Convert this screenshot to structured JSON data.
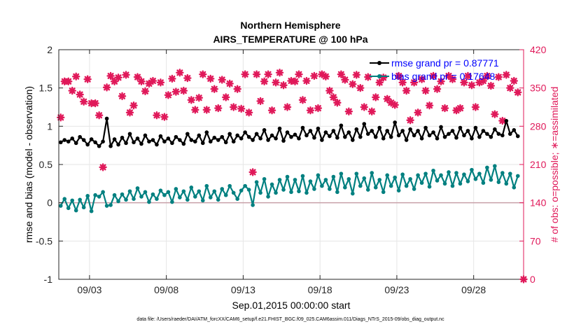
{
  "chart_data": {
    "type": "line",
    "title": "Northern Hemisphere",
    "subtitle": "AIRS_TEMPERATURE @ 100 hPa",
    "xlabel": "Sep.01,2015 00:00:00 start",
    "ylabel": "rmse and bias (model - observation)",
    "y2label": "# of obs: o=possible; ∗=assimilated",
    "footnote": "data file: /Users/raeder/DAI/ATM_forcXX/CAM6_setup/f.e21.FHIST_BGC.f09_025.CAM6assim.011/Diags_NTrS_2015-09/obs_diag_output.nc",
    "xlim": [
      1.0,
      31.25
    ],
    "ylim": [
      -1,
      2
    ],
    "y2lim": [
      0,
      420
    ],
    "x_ticks": [
      3,
      8,
      13,
      18,
      23,
      28
    ],
    "x_tick_labels": [
      "09/03",
      "09/08",
      "09/13",
      "09/18",
      "09/23",
      "09/28"
    ],
    "y_ticks": [
      -1,
      -0.5,
      0,
      0.5,
      1,
      1.5,
      2
    ],
    "y_tick_labels": [
      "-1",
      "-0.5",
      "0",
      "0.5",
      "1",
      "1.5",
      "2"
    ],
    "y2_ticks": [
      0,
      70,
      140,
      210,
      280,
      350,
      420
    ],
    "y2_tick_labels": [
      "0",
      "70",
      "140",
      "210",
      "280",
      "350",
      "420"
    ],
    "grid": true,
    "legend_position": "top-right",
    "colors": {
      "rmse": "#000000",
      "bias": "#008080",
      "obs": "#e0195a",
      "axis2": "#e0195a",
      "zero_line": "#c8a0a8"
    },
    "series": [
      {
        "name": "rmse grand pr = 0.87771",
        "color": "#000000",
        "x": [
          1.125,
          1.375,
          1.625,
          1.875,
          2.125,
          2.375,
          2.625,
          2.875,
          3.125,
          3.375,
          3.625,
          3.875,
          4.125,
          4.375,
          4.625,
          4.875,
          5.125,
          5.375,
          5.625,
          5.875,
          6.125,
          6.375,
          6.625,
          6.875,
          7.125,
          7.375,
          7.625,
          7.875,
          8.125,
          8.375,
          8.625,
          8.875,
          9.125,
          9.375,
          9.625,
          9.875,
          10.125,
          10.375,
          10.625,
          10.875,
          11.125,
          11.375,
          11.625,
          11.875,
          12.125,
          12.375,
          12.625,
          12.875,
          13.125,
          13.375,
          13.625,
          13.875,
          14.125,
          14.375,
          14.625,
          14.875,
          15.125,
          15.375,
          15.625,
          15.875,
          16.125,
          16.375,
          16.625,
          16.875,
          17.125,
          17.375,
          17.625,
          17.875,
          18.125,
          18.375,
          18.625,
          18.875,
          19.125,
          19.375,
          19.625,
          19.875,
          20.125,
          20.375,
          20.625,
          20.875,
          21.125,
          21.375,
          21.625,
          21.875,
          22.125,
          22.375,
          22.625,
          22.875,
          23.125,
          23.375,
          23.625,
          23.875,
          24.125,
          24.375,
          24.625,
          24.875,
          25.125,
          25.375,
          25.625,
          25.875,
          26.125,
          26.375,
          26.625,
          26.875,
          27.125,
          27.375,
          27.625,
          27.875,
          28.125,
          28.375,
          28.625,
          28.875,
          29.125,
          29.375,
          29.625,
          29.875,
          30.125,
          30.375,
          30.625,
          30.875
        ],
        "values": [
          0.79,
          0.82,
          0.8,
          0.84,
          0.78,
          0.86,
          0.82,
          0.76,
          0.83,
          0.79,
          0.74,
          0.8,
          1.1,
          0.74,
          0.83,
          0.76,
          0.85,
          0.78,
          0.9,
          0.79,
          0.84,
          0.77,
          0.88,
          0.8,
          0.82,
          0.76,
          0.87,
          0.8,
          0.84,
          0.78,
          0.86,
          0.82,
          0.77,
          0.9,
          0.82,
          0.8,
          0.88,
          0.78,
          0.92,
          0.8,
          0.85,
          0.82,
          0.86,
          0.79,
          0.9,
          0.8,
          0.88,
          0.84,
          0.92,
          0.86,
          0.82,
          0.9,
          0.84,
          0.95,
          0.82,
          0.88,
          0.84,
          0.97,
          0.81,
          0.92,
          0.86,
          0.89,
          0.84,
          0.98,
          0.88,
          0.94,
          0.85,
          0.97,
          0.82,
          0.92,
          0.87,
          0.94,
          0.85,
          1.01,
          0.86,
          0.92,
          0.82,
          0.96,
          0.86,
          1.03,
          0.9,
          0.94,
          0.86,
          0.98,
          0.84,
          0.94,
          0.86,
          1.05,
          0.88,
          0.94,
          0.82,
          0.96,
          0.88,
          0.94,
          0.84,
          0.98,
          0.88,
          0.92,
          0.84,
          0.99,
          0.86,
          0.9,
          0.94,
          0.85,
          0.98,
          0.88,
          0.94,
          0.84,
          0.98,
          0.86,
          0.94,
          0.9,
          0.86,
          0.96,
          0.9,
          0.88,
          1.07,
          0.9,
          0.95,
          0.87
        ]
      },
      {
        "name": "bias grand pr = 0.17648",
        "color": "#008080",
        "x": [
          1.125,
          1.375,
          1.625,
          1.875,
          2.125,
          2.375,
          2.625,
          2.875,
          3.125,
          3.375,
          3.625,
          3.875,
          4.125,
          4.375,
          4.625,
          4.875,
          5.125,
          5.375,
          5.625,
          5.875,
          6.125,
          6.375,
          6.625,
          6.875,
          7.125,
          7.375,
          7.625,
          7.875,
          8.125,
          8.375,
          8.625,
          8.875,
          9.125,
          9.375,
          9.625,
          9.875,
          10.125,
          10.375,
          10.625,
          10.875,
          11.125,
          11.375,
          11.625,
          11.875,
          12.125,
          12.375,
          12.625,
          12.875,
          13.125,
          13.375,
          13.625,
          13.875,
          14.125,
          14.375,
          14.625,
          14.875,
          15.125,
          15.375,
          15.625,
          15.875,
          16.125,
          16.375,
          16.625,
          16.875,
          17.125,
          17.375,
          17.625,
          17.875,
          18.125,
          18.375,
          18.625,
          18.875,
          19.125,
          19.375,
          19.625,
          19.875,
          20.125,
          20.375,
          20.625,
          20.875,
          21.125,
          21.375,
          21.625,
          21.875,
          22.125,
          22.375,
          22.625,
          22.875,
          23.125,
          23.375,
          23.625,
          23.875,
          24.125,
          24.375,
          24.625,
          24.875,
          25.125,
          25.375,
          25.625,
          25.875,
          26.125,
          26.375,
          26.625,
          26.875,
          27.125,
          27.375,
          27.625,
          27.875,
          28.125,
          28.375,
          28.625,
          28.875,
          29.125,
          29.375,
          29.625,
          29.875,
          30.125,
          30.375,
          30.625,
          30.875
        ],
        "values": [
          -0.04,
          0.05,
          -0.07,
          0.03,
          -0.1,
          0.04,
          -0.06,
          0.09,
          -0.11,
          0.1,
          0.08,
          0.14,
          -0.04,
          -0.03,
          0.1,
          0.02,
          0.11,
          0.04,
          0.15,
          0.05,
          0.19,
          0.08,
          0.14,
          0.01,
          0.11,
          0.05,
          0.16,
          0.1,
          0.14,
          0.01,
          0.18,
          0.07,
          0.15,
          0.04,
          0.2,
          0.08,
          0.15,
          0.03,
          0.22,
          0.07,
          0.15,
          0.04,
          0.18,
          0.1,
          0.22,
          0.13,
          0.05,
          0.16,
          0.22,
          0.17,
          -0.03,
          0.27,
          0.13,
          0.31,
          0.08,
          0.24,
          0.13,
          0.3,
          0.17,
          0.34,
          0.14,
          0.3,
          0.15,
          0.35,
          0.13,
          0.28,
          0.18,
          0.36,
          0.22,
          0.3,
          0.18,
          0.34,
          0.14,
          0.38,
          0.2,
          0.31,
          0.12,
          0.38,
          0.22,
          0.32,
          0.17,
          0.39,
          0.2,
          0.3,
          0.14,
          0.36,
          0.22,
          0.33,
          0.16,
          0.37,
          0.22,
          0.31,
          0.18,
          0.36,
          0.26,
          0.38,
          0.21,
          0.42,
          0.29,
          0.36,
          0.25,
          0.4,
          0.22,
          0.39,
          0.25,
          0.37,
          0.28,
          0.43,
          0.31,
          0.38,
          0.26,
          0.46,
          0.3,
          0.48,
          0.27,
          0.39,
          0.25,
          0.38,
          0.2,
          0.35
        ]
      },
      {
        "name": "# of obs (assimilated)",
        "color": "#e0195a",
        "axis": "right",
        "x": [
          1.125,
          1.375,
          1.625,
          1.875,
          2.125,
          2.375,
          2.625,
          2.875,
          3.125,
          3.375,
          3.625,
          3.875,
          4.125,
          4.375,
          4.625,
          4.875,
          5.125,
          5.375,
          5.625,
          5.875,
          6.125,
          6.375,
          6.625,
          6.875,
          7.125,
          7.375,
          7.625,
          7.875,
          8.125,
          8.375,
          8.625,
          8.875,
          9.125,
          9.375,
          9.625,
          9.875,
          10.125,
          10.375,
          10.625,
          10.875,
          11.125,
          11.375,
          11.625,
          11.875,
          12.125,
          12.375,
          12.625,
          12.875,
          13.125,
          13.375,
          13.625,
          13.875,
          14.125,
          14.375,
          14.625,
          14.875,
          15.125,
          15.375,
          15.625,
          15.875,
          16.125,
          16.375,
          16.625,
          16.875,
          17.125,
          17.375,
          17.625,
          17.875,
          18.125,
          18.375,
          18.625,
          18.875,
          19.125,
          19.375,
          19.625,
          19.875,
          20.125,
          20.375,
          20.625,
          20.875,
          21.125,
          21.375,
          21.625,
          21.875,
          22.125,
          22.375,
          22.625,
          22.875,
          23.125,
          23.375,
          23.625,
          23.875,
          24.125,
          24.375,
          24.625,
          24.875,
          25.125,
          25.375,
          25.625,
          25.875,
          26.125,
          26.375,
          26.625,
          26.875,
          27.125,
          27.375,
          27.625,
          27.875,
          28.125,
          28.375,
          28.625,
          28.875,
          29.125,
          29.375,
          29.625,
          29.875,
          30.125,
          30.375,
          30.625,
          30.875
        ],
        "values": [
          296,
          362,
          362,
          345,
          371,
          338,
          325,
          366,
          322,
          322,
          300,
          205,
          351,
          372,
          362,
          369,
          335,
          374,
          305,
          318,
          370,
          362,
          344,
          358,
          363,
          300,
          360,
          297,
          337,
          367,
          343,
          378,
          345,
          368,
          328,
          310,
          332,
          375,
          310,
          367,
          348,
          313,
          365,
          333,
          358,
          315,
          348,
          312,
          375,
          305,
          196,
          375,
          326,
          362,
          375,
          309,
          360,
          378,
          355,
          315,
          363,
          362,
          375,
          328,
          363,
          309,
          372,
          313,
          375,
          371,
          345,
          333,
          323,
          375,
          365,
          307,
          357,
          374,
          350,
          315,
          370,
          307,
          333,
          360,
          369,
          330,
          323,
          319,
          372,
          360,
          345,
          291,
          360,
          305,
          366,
          345,
          318,
          372,
          348,
          362,
          313,
          372,
          366,
          309,
          313,
          360,
          372,
          355,
          315,
          360,
          363,
          372,
          354,
          302,
          370,
          290,
          374,
          350,
          363,
          342
        ]
      }
    ]
  }
}
